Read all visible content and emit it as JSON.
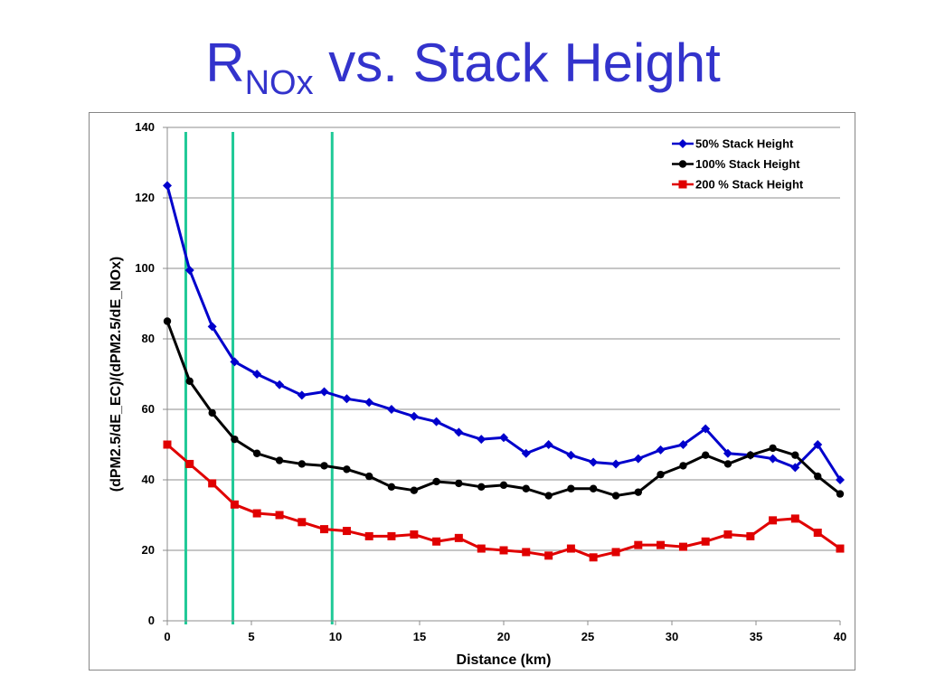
{
  "slide": {
    "title_main": "R",
    "title_sub": "NOx",
    "title_rest": " vs. Stack Height"
  },
  "chart_data": {
    "type": "line",
    "title": "",
    "xlabel": "Distance (km)",
    "ylabel": "(dPM2.5/dE_EC)/(dPM2.5/dE_NOx)",
    "xlim": [
      0,
      40
    ],
    "ylim": [
      0,
      140
    ],
    "xticks": [
      0,
      5,
      10,
      15,
      20,
      25,
      30,
      35,
      40
    ],
    "yticks": [
      0,
      20,
      40,
      60,
      80,
      100,
      120,
      140
    ],
    "grid": "horizontal",
    "legend_position": "top-right",
    "vertical_lines": {
      "x": [
        1.1,
        3.9,
        9.8
      ],
      "color": "#20c997"
    },
    "x": [
      0,
      1.33,
      2.67,
      4,
      5.33,
      6.67,
      8,
      9.33,
      10.67,
      12,
      13.33,
      14.67,
      16,
      17.33,
      18.67,
      20,
      21.33,
      22.67,
      24,
      25.33,
      26.67,
      28,
      29.33,
      30.67,
      32,
      33.33,
      34.67,
      36,
      37.33,
      38.67,
      40
    ],
    "series": [
      {
        "name": "50% Stack Height",
        "color": "#0000cc",
        "marker": "diamond",
        "values": [
          123.5,
          99.5,
          83.5,
          73.5,
          70,
          67,
          64,
          65,
          63,
          62,
          60,
          58,
          56.5,
          53.5,
          51.5,
          52,
          47.5,
          50,
          47,
          45,
          44.5,
          46,
          48.5,
          50,
          54.5,
          47.5,
          47,
          46,
          43.5,
          50,
          40
        ]
      },
      {
        "name": "100% Stack Height",
        "color": "#000000",
        "marker": "circle",
        "values": [
          85,
          68,
          59,
          51.5,
          47.5,
          45.5,
          44.5,
          44,
          43,
          41,
          38,
          37,
          39.5,
          39,
          38,
          38.5,
          37.5,
          35.5,
          37.5,
          37.5,
          35.5,
          36.5,
          41.5,
          44,
          47,
          44.5,
          47,
          49,
          47,
          41,
          36
        ]
      },
      {
        "name": "200 % Stack Height",
        "color": "#e00000",
        "marker": "square",
        "values": [
          50,
          44.5,
          39,
          33,
          30.5,
          30,
          28,
          26,
          25.5,
          24,
          24,
          24.5,
          22.5,
          23.5,
          20.5,
          20,
          19.5,
          18.5,
          20.5,
          18,
          19.5,
          21.5,
          21.5,
          21,
          22.5,
          24.5,
          24,
          28.5,
          29,
          25,
          20.5
        ]
      }
    ]
  }
}
